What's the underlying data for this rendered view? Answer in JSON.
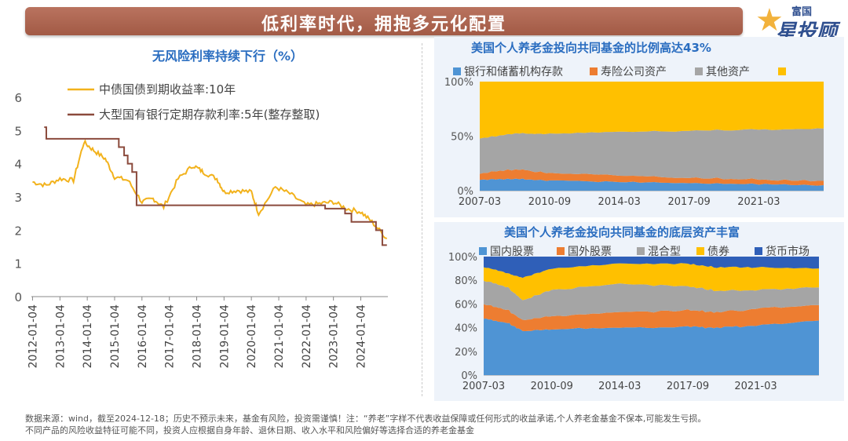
{
  "header": {
    "title": "低利率时代，拥抱多元化配置"
  },
  "logo": {
    "top": "富国",
    "main": "星投顾"
  },
  "chart_data": [
    {
      "type": "line",
      "title": "无风险利率持续下行（%）",
      "ylim": [
        0,
        6
      ],
      "yticks": [
        "0",
        "1",
        "2",
        "3",
        "4",
        "5",
        "6"
      ],
      "xticks": [
        "2012-01-04",
        "2013-01-04",
        "2014-01-04",
        "2015-01-04",
        "2016-01-04",
        "2017-01-04",
        "2018-01-04",
        "2019-01-04",
        "2020-01-04",
        "2021-01-04",
        "2022-01-04",
        "2023-01-04",
        "2024-01-04"
      ],
      "grid": false,
      "legend_position": "top-left",
      "series": [
        {
          "name": "中债国债到期收益率:10年",
          "color": "#f2b21c",
          "x": [
            "2012-01-04",
            "2012-07-04",
            "2013-01-04",
            "2013-07-04",
            "2013-11-20",
            "2014-04-01",
            "2014-09-01",
            "2015-01-04",
            "2015-07-01",
            "2016-01-04",
            "2016-06-01",
            "2016-10-20",
            "2017-05-01",
            "2017-11-20",
            "2018-04-01",
            "2018-10-01",
            "2019-01-04",
            "2019-07-01",
            "2020-01-04",
            "2020-04-10",
            "2020-11-20",
            "2021-06-01",
            "2022-01-04",
            "2022-07-01",
            "2023-01-04",
            "2023-07-01",
            "2024-01-04",
            "2024-06-01",
            "2024-12-18"
          ],
          "values": [
            3.45,
            3.35,
            3.55,
            3.5,
            4.65,
            4.4,
            4.15,
            3.6,
            3.5,
            2.85,
            2.95,
            2.7,
            3.55,
            3.95,
            3.75,
            3.55,
            3.15,
            3.2,
            3.15,
            2.5,
            3.3,
            3.1,
            2.75,
            2.8,
            2.85,
            2.65,
            2.55,
            2.25,
            1.75
          ]
        },
        {
          "name": "大型国有银行定期存款利率:5年(整存整取)",
          "color": "#8b4a3c",
          "x": [
            "2012-06-08",
            "2012-07-06",
            "2015-03-01",
            "2015-05-11",
            "2015-06-28",
            "2015-08-26",
            "2015-10-24",
            "2022-09-15",
            "2023-06-08",
            "2023-09-01",
            "2024-07-25",
            "2024-10-18",
            "2024-12-18"
          ],
          "values": [
            5.1,
            4.75,
            4.5,
            4.25,
            4.0,
            3.75,
            2.75,
            2.65,
            2.5,
            2.25,
            2.0,
            1.55,
            1.55
          ]
        }
      ]
    },
    {
      "type": "area",
      "stacked": true,
      "percent": true,
      "title": "美国个人养老金投向共同基金的比例高达43%",
      "ylim": [
        0,
        100
      ],
      "yticks": [
        "0%",
        "50%",
        "100%"
      ],
      "xticks": [
        "2007-03",
        "2010-09",
        "2014-03",
        "2017-09",
        "2021-03"
      ],
      "x": [
        "2007-03",
        "2009-03",
        "2010-09",
        "2014-03",
        "2017-09",
        "2021-03",
        "2024-06"
      ],
      "legend_position": "top",
      "series": [
        {
          "name": "银行和储蓄机构存款",
          "color": "#4f94d4",
          "values": [
            10,
            11,
            9,
            8,
            7,
            6,
            5
          ]
        },
        {
          "name": "寿险公司资产",
          "color": "#ed7d31",
          "values": [
            6,
            9,
            7,
            6,
            5,
            4,
            4
          ]
        },
        {
          "name": "其他资产",
          "color": "#a5a5a5",
          "values": [
            32,
            33,
            36,
            40,
            43,
            46,
            48
          ]
        },
        {
          "name": "",
          "color": "#ffc000",
          "values": [
            52,
            47,
            48,
            46,
            45,
            44,
            43
          ]
        }
      ]
    },
    {
      "type": "area",
      "stacked": true,
      "percent": true,
      "title": "美国个人养老金投向共同基金的底层资产丰富",
      "ylim": [
        0,
        100
      ],
      "yticks": [
        "0%",
        "20%",
        "40%",
        "60%",
        "80%",
        "100%"
      ],
      "xticks": [
        "2007-03",
        "2010-09",
        "2014-03",
        "2017-09",
        "2021-03"
      ],
      "x": [
        "2007-03",
        "2008-06",
        "2009-03",
        "2010-09",
        "2014-03",
        "2017-09",
        "2019-03",
        "2021-03",
        "2024-06"
      ],
      "legend_position": "top",
      "series": [
        {
          "name": "国内股票",
          "color": "#4f94d4",
          "values": [
            48,
            44,
            37,
            39,
            40,
            41,
            40,
            42,
            46
          ]
        },
        {
          "name": "国外股票",
          "color": "#ed7d31",
          "values": [
            12,
            11,
            9,
            11,
            13,
            14,
            13,
            14,
            13
          ]
        },
        {
          "name": "混合型",
          "color": "#a5a5a5",
          "values": [
            20,
            19,
            17,
            22,
            24,
            20,
            18,
            16,
            15
          ]
        },
        {
          "name": "债券",
          "color": "#ffc000",
          "values": [
            11,
            12,
            19,
            18,
            17,
            19,
            20,
            19,
            16
          ]
        },
        {
          "name": "货币市场",
          "color": "#2f5fb8",
          "values": [
            9,
            14,
            18,
            10,
            6,
            6,
            9,
            9,
            10
          ]
        }
      ]
    }
  ],
  "footnote": {
    "line1": "数据来源：wind，截至2024-12-18；历史不预示未来，基金有风险，投资需谨慎！注：“养老”字样不代表收益保障或任何形式的收益承诺,个人养老金基金不保本,可能发生亏损。",
    "line2": "不同产品的风险收益特征可能不同，投资人应根据自身年龄、退休日期、收入水平和风险偏好等选择合适的养老金基金"
  }
}
